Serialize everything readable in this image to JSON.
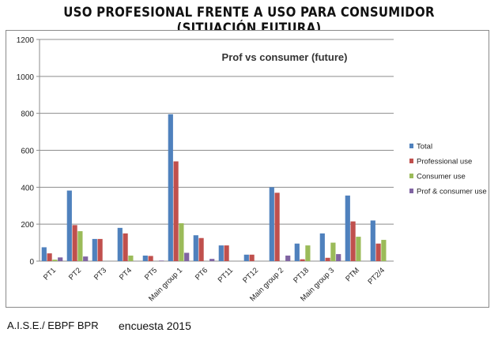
{
  "heading": "USO PROFESIONAL FRENTE A USO PARA CONSUMIDOR (SITUACIÓN FUTURA)",
  "footer": {
    "source": "A.I.S.E./ EBPF BPR",
    "survey": "encuesta 2015"
  },
  "colors": {
    "total": "#4f81bd",
    "professional": "#c0504d",
    "consumer": "#9bbb59",
    "both": "#8064a2",
    "grid": "#8c8c8c"
  },
  "chart_data": {
    "type": "bar",
    "title": "Prof vs consumer (future)",
    "xlabel": "",
    "ylabel": "",
    "ylim": [
      0,
      1200
    ],
    "yticks": [
      "0",
      "200",
      "400",
      "600",
      "800",
      "1000",
      "1200"
    ],
    "grid": true,
    "legend_position": "right",
    "categories": [
      "PT1",
      "PT2",
      "PT3",
      "PT4",
      "PT5",
      "Main group 1",
      "PT6",
      "PT11",
      "PT12",
      "Main group 2",
      "PT18",
      "Main group 3",
      "PTM",
      "PT2/4"
    ],
    "series": [
      {
        "name": "Total",
        "values": [
          75,
          382,
          120,
          180,
          30,
          795,
          140,
          85,
          35,
          400,
          95,
          150,
          355,
          220
        ]
      },
      {
        "name": "Professional use",
        "values": [
          42,
          195,
          120,
          150,
          28,
          540,
          125,
          85,
          35,
          370,
          10,
          18,
          215,
          95
        ]
      },
      {
        "name": "Consumer use",
        "values": [
          8,
          162,
          0,
          30,
          0,
          205,
          0,
          0,
          0,
          0,
          85,
          100,
          132,
          115
        ]
      },
      {
        "name": "Prof & consumer use",
        "values": [
          20,
          25,
          0,
          0,
          3,
          45,
          12,
          0,
          0,
          30,
          0,
          38,
          0,
          0
        ]
      }
    ]
  }
}
